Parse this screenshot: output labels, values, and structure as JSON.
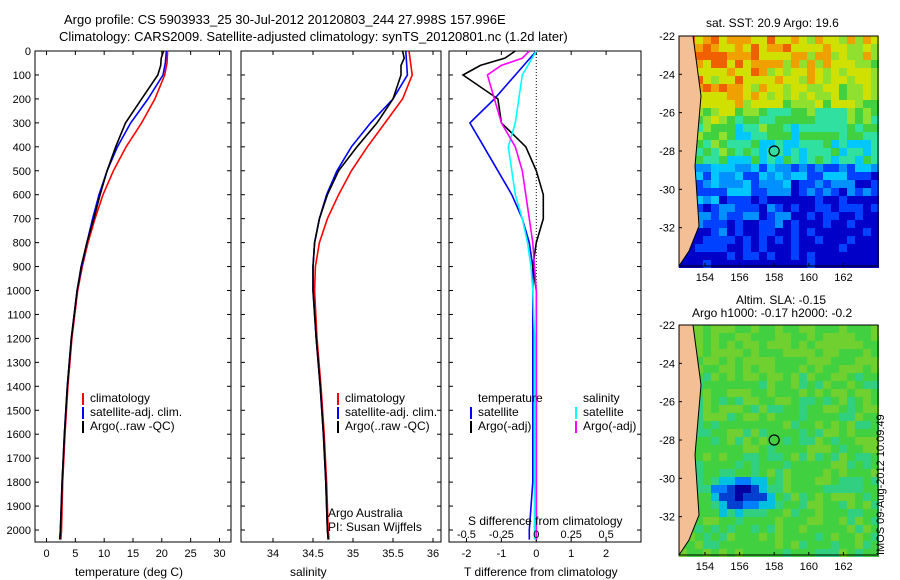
{
  "title_line1": "Argo profile: CS 5903933_25 30-Jul-2012 20120803_244 27.998S 157.996E",
  "title_line2": "Climatology: CARS2009. Satellite-adjusted climatology: synTS_20120801.nc (1.2d later)",
  "timestamp": "IMOS 09-Aug-2012 10:09:49",
  "colors": {
    "clim": "#ff0000",
    "sat": "#0000ff",
    "argo": "#000000",
    "sat_s": "#00ffff",
    "argo_s": "#ff00ff"
  },
  "chart_data": [
    {
      "name": "temperature-panel",
      "type": "line",
      "xlabel": "temperature (deg C)",
      "xlim": [
        -2,
        32
      ],
      "xticks": [
        "0",
        "5",
        "10",
        "15",
        "20",
        "25",
        "30"
      ],
      "xtick_values": [
        0,
        5,
        10,
        15,
        20,
        25,
        30
      ],
      "ylim": [
        0,
        2050
      ],
      "yticks": [
        "0",
        "100",
        "200",
        "300",
        "400",
        "500",
        "600",
        "700",
        "800",
        "900",
        "1000",
        "1100",
        "1200",
        "1300",
        "1400",
        "1500",
        "1600",
        "1700",
        "1800",
        "1900",
        "2000"
      ],
      "ytick_values": [
        0,
        100,
        200,
        300,
        400,
        500,
        600,
        700,
        800,
        900,
        1000,
        1100,
        1200,
        1300,
        1400,
        1500,
        1600,
        1700,
        1800,
        1900,
        2000
      ],
      "legend": [
        "climatology",
        "satellite-adj. clim.",
        "Argo(..raw -QC)"
      ],
      "series": [
        {
          "name": "climatology",
          "color": "#ff0000",
          "depth": [
            0,
            50,
            100,
            200,
            300,
            400,
            500,
            600,
            700,
            800,
            900,
            1000,
            1200,
            1400,
            1600,
            1800,
            2000,
            2040
          ],
          "values": [
            21,
            20.9,
            20.5,
            18.8,
            16.5,
            13.8,
            11.6,
            9.8,
            8.4,
            7.2,
            6.2,
            5.4,
            4.4,
            3.7,
            3.2,
            2.8,
            2.6,
            2.5
          ]
        },
        {
          "name": "satellite-adj. clim.",
          "color": "#0000ff",
          "depth": [
            0,
            50,
            100,
            200,
            300,
            400,
            500,
            600,
            700,
            800,
            900,
            1000,
            1200,
            1400,
            1600,
            1800,
            2000,
            2040
          ],
          "values": [
            20.8,
            20.6,
            20.2,
            17.6,
            14.6,
            12.3,
            10.5,
            9.1,
            8.0,
            7.0,
            6.1,
            5.3,
            4.3,
            3.6,
            3.1,
            2.7,
            2.4,
            2.3
          ]
        },
        {
          "name": "Argo(..raw -QC)",
          "color": "#000000",
          "depth": [
            0,
            30,
            60,
            100,
            200,
            300,
            400,
            500,
            600,
            700,
            800,
            900,
            1000,
            1200,
            1400,
            1600,
            1800,
            2000,
            2040
          ],
          "values": [
            20.3,
            19.9,
            19.8,
            19.3,
            16.5,
            13.7,
            12.0,
            10.5,
            9.3,
            8.2,
            7.0,
            6.0,
            5.3,
            4.3,
            3.6,
            3.1,
            2.7,
            2.4,
            2.3
          ]
        }
      ]
    },
    {
      "name": "salinity-panel",
      "type": "line",
      "xlabel": "salinity",
      "xlim": [
        33.6,
        36.1
      ],
      "xticks": [
        "34",
        "34.5",
        "35",
        "35.5",
        "36"
      ],
      "xtick_values": [
        34,
        34.5,
        35,
        35.5,
        36
      ],
      "ylim": [
        0,
        2050
      ],
      "legend": [
        "climatology",
        "satellite-adj. clim.",
        "Argo(..raw -QC)"
      ],
      "annotation": [
        "Argo Australia",
        "PI: Susan Wijffels"
      ],
      "series": [
        {
          "name": "climatology",
          "color": "#ff0000",
          "depth": [
            0,
            50,
            100,
            200,
            300,
            400,
            500,
            600,
            700,
            800,
            900,
            1000,
            1200,
            1400,
            1600,
            1800,
            2000,
            2040
          ],
          "values": [
            35.7,
            35.72,
            35.74,
            35.62,
            35.4,
            35.18,
            34.98,
            34.82,
            34.68,
            34.58,
            34.53,
            34.52,
            34.55,
            34.6,
            34.64,
            34.67,
            34.69,
            34.7
          ]
        },
        {
          "name": "satellite-adj. clim.",
          "color": "#0000ff",
          "depth": [
            0,
            50,
            100,
            200,
            300,
            400,
            500,
            600,
            700,
            800,
            900,
            1000,
            1200,
            1400,
            1600,
            1800,
            2000,
            2040
          ],
          "values": [
            35.66,
            35.67,
            35.68,
            35.5,
            35.22,
            34.98,
            34.8,
            34.67,
            34.58,
            34.52,
            34.5,
            34.5,
            34.54,
            34.59,
            34.63,
            34.66,
            34.68,
            34.69
          ]
        },
        {
          "name": "Argo(..raw -QC)",
          "color": "#000000",
          "depth": [
            0,
            30,
            60,
            100,
            200,
            300,
            400,
            500,
            600,
            700,
            800,
            900,
            1000,
            1200,
            1400,
            1600,
            1800,
            2000,
            2040
          ],
          "values": [
            35.62,
            35.64,
            35.6,
            35.6,
            35.5,
            35.3,
            35.05,
            34.82,
            34.68,
            34.58,
            34.52,
            34.5,
            34.5,
            34.54,
            34.59,
            34.63,
            34.66,
            34.68,
            34.69
          ]
        }
      ]
    },
    {
      "name": "difference-panel",
      "type": "line",
      "xlabel": "T difference from climatology",
      "top_label": "S difference from climatology",
      "xlim": [
        -2.5,
        3
      ],
      "xticks": [
        "-2",
        "-1",
        "0",
        "1",
        "2"
      ],
      "xtick_values": [
        -2,
        -1,
        0,
        1,
        2
      ],
      "top_xticks": [
        "-0.5",
        "-0.25",
        "0",
        "0.25",
        "0.5"
      ],
      "top_xtick_values": [
        -2,
        -1,
        0,
        1,
        2
      ],
      "ylim": [
        0,
        2050
      ],
      "legend_t": [
        "temperature",
        "satellite",
        "Argo(-adj)"
      ],
      "legend_s": [
        "salinity",
        "satellite",
        "Argo(-adj)"
      ],
      "series": [
        {
          "name": "T satellite",
          "color": "#0000ff",
          "depth": [
            0,
            50,
            100,
            200,
            300,
            400,
            500,
            600,
            700,
            800,
            900,
            1000,
            1200,
            1400,
            1600,
            1800,
            2000,
            2040
          ],
          "values": [
            0,
            -0.3,
            -0.6,
            -1.2,
            -1.9,
            -1.5,
            -1.1,
            -0.7,
            -0.4,
            -0.2,
            -0.1,
            -0.1,
            -0.1,
            -0.1,
            -0.1,
            -0.1,
            -0.2,
            -0.2
          ]
        },
        {
          "name": "T Argo(-adj)",
          "color": "#000000",
          "depth": [
            0,
            30,
            60,
            100,
            200,
            300,
            400,
            500,
            600,
            700,
            800,
            900,
            1000,
            1200,
            1400,
            1600,
            1800,
            2000,
            2040
          ],
          "values": [
            -0.6,
            -0.9,
            -1.6,
            -2.1,
            -1.1,
            -1.0,
            -0.3,
            0,
            0.2,
            0.2,
            0,
            -0.1,
            0,
            0,
            0,
            0,
            0,
            0,
            0
          ]
        },
        {
          "name": "S satellite",
          "color": "#00ffff",
          "depth": [
            0,
            50,
            100,
            200,
            300,
            400,
            500,
            600,
            700,
            800,
            900,
            1000,
            1200,
            1400,
            1600,
            1800,
            2000,
            2040
          ],
          "values": [
            0,
            -0.2,
            -0.4,
            -0.5,
            -0.6,
            -0.8,
            -0.7,
            -0.6,
            -0.4,
            -0.25,
            -0.15,
            -0.1,
            -0.05,
            -0.05,
            -0.05,
            -0.05,
            -0.05,
            -0.05
          ]
        },
        {
          "name": "S Argo(-adj)",
          "color": "#ff00ff",
          "depth": [
            0,
            30,
            60,
            100,
            200,
            300,
            400,
            500,
            600,
            700,
            800,
            900,
            1000,
            1200,
            1400,
            1600,
            1800,
            2000,
            2040
          ],
          "values": [
            -0.2,
            -0.4,
            -1.0,
            -1.4,
            -1.2,
            -1.0,
            -0.6,
            -0.4,
            -0.3,
            -0.2,
            -0.1,
            -0.05,
            0,
            0,
            0,
            0,
            0,
            0,
            0
          ]
        }
      ]
    },
    {
      "name": "sst-map",
      "type": "heatmap",
      "title": "sat. SST: 20.9  Argo: 19.6",
      "lon_ticks": [
        "154",
        "156",
        "158",
        "160",
        "162"
      ],
      "lon_values": [
        154,
        156,
        158,
        160,
        162
      ],
      "lat_ticks": [
        "-22",
        "-24",
        "-26",
        "-28",
        "-30",
        "-32"
      ],
      "lat_values": [
        -22,
        -24,
        -26,
        -28,
        -30,
        -32
      ],
      "lon_range": [
        152.5,
        164
      ],
      "lat_range": [
        -34,
        -22
      ],
      "float_position": {
        "lon": 158,
        "lat": -28
      }
    },
    {
      "name": "sla-map",
      "type": "heatmap",
      "title_line1": "Altim. SLA: -0.15",
      "title_line2": "Argo h1000: -0.17  h2000: -0.2",
      "lon_ticks": [
        "154",
        "156",
        "158",
        "160",
        "162"
      ],
      "lon_values": [
        154,
        156,
        158,
        160,
        162
      ],
      "lat_ticks": [
        "-22",
        "-24",
        "-26",
        "-28",
        "-30",
        "-32"
      ],
      "lat_values": [
        -22,
        -24,
        -26,
        -28,
        -30,
        -32
      ],
      "lon_range": [
        152.5,
        164
      ],
      "lat_range": [
        -34,
        -22
      ],
      "float_position": {
        "lon": 158,
        "lat": -28
      }
    }
  ]
}
